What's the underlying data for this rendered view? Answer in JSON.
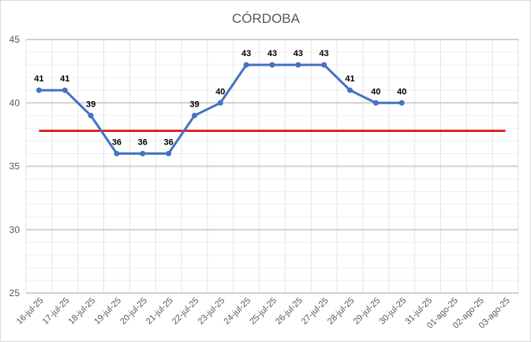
{
  "chart_data": {
    "type": "line",
    "title": "CÓRDOBA",
    "categories": [
      "16-jul-25",
      "17-jul-25",
      "18-jul-25",
      "19-jul-25",
      "20-jul-25",
      "21-jul-25",
      "22-jul-25",
      "23-jul-25",
      "24-jul-25",
      "25-jul-25",
      "26-jul-25",
      "27-jul-25",
      "28-jul-25",
      "29-jul-25",
      "30-jul-25",
      "31-jul-25",
      "01-ago-25",
      "02-ago-25",
      "03-ago-25"
    ],
    "series": [
      {
        "values": [
          41,
          41,
          39,
          36,
          36,
          36,
          39,
          40,
          43,
          43,
          43,
          43,
          41,
          40,
          40,
          null,
          null,
          null,
          null
        ],
        "color": "#4472c4"
      },
      {
        "values": [
          37.8,
          37.8,
          37.8,
          37.8,
          37.8,
          37.8,
          37.8,
          37.8,
          37.8,
          37.8,
          37.8,
          37.8,
          37.8,
          37.8,
          37.8,
          37.8,
          37.8,
          37.8,
          37.8
        ],
        "color": "#e00000"
      }
    ],
    "ylim": [
      25,
      45
    ],
    "yticks": [
      25,
      30,
      35,
      40,
      45
    ],
    "grid": true,
    "legend": "none"
  }
}
